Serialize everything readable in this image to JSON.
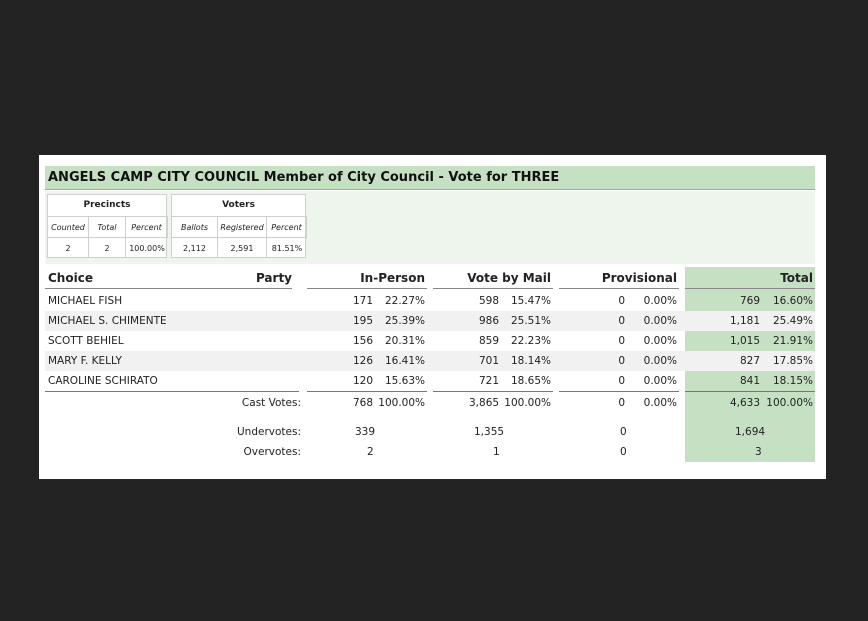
{
  "title": "ANGELS CAMP CITY COUNCIL  Member of City Council - Vote for THREE",
  "precincts": {
    "header": "Precincts",
    "columns": [
      "Counted",
      "Total",
      "Percent"
    ],
    "values": [
      "2",
      "2",
      "100.00%"
    ]
  },
  "voters": {
    "header": "Voters",
    "columns": [
      "Ballots",
      "Registered",
      "Percent"
    ],
    "values": [
      "2,112",
      "2,591",
      "81.51%"
    ]
  },
  "columns": {
    "choice": "Choice",
    "party": "Party",
    "in_person": "In-Person",
    "vote_by_mail": "Vote by Mail",
    "provisional": "Provisional",
    "total": "Total"
  },
  "candidates": [
    {
      "name": "MICHAEL FISH",
      "ip": "171",
      "ip_pct": "22.27%",
      "vbm": "598",
      "vbm_pct": "15.47%",
      "prov": "0",
      "prov_pct": "0.00%",
      "total": "769",
      "total_pct": "16.60%"
    },
    {
      "name": "MICHAEL S. CHIMENTE",
      "ip": "195",
      "ip_pct": "25.39%",
      "vbm": "986",
      "vbm_pct": "25.51%",
      "prov": "0",
      "prov_pct": "0.00%",
      "total": "1,181",
      "total_pct": "25.49%"
    },
    {
      "name": "SCOTT BEHIEL",
      "ip": "156",
      "ip_pct": "20.31%",
      "vbm": "859",
      "vbm_pct": "22.23%",
      "prov": "0",
      "prov_pct": "0.00%",
      "total": "1,015",
      "total_pct": "21.91%"
    },
    {
      "name": "MARY F. KELLY",
      "ip": "126",
      "ip_pct": "16.41%",
      "vbm": "701",
      "vbm_pct": "18.14%",
      "prov": "0",
      "prov_pct": "0.00%",
      "total": "827",
      "total_pct": "17.85%"
    },
    {
      "name": "CAROLINE SCHIRATO",
      "ip": "120",
      "ip_pct": "15.63%",
      "vbm": "721",
      "vbm_pct": "18.65%",
      "prov": "0",
      "prov_pct": "0.00%",
      "total": "841",
      "total_pct": "18.15%"
    }
  ],
  "cast_votes": {
    "label": "Cast Votes:",
    "ip": "768",
    "ip_pct": "100.00%",
    "vbm": "3,865",
    "vbm_pct": "100.00%",
    "prov": "0",
    "prov_pct": "0.00%",
    "total": "4,633",
    "total_pct": "100.00%"
  },
  "undervotes": {
    "label": "Undervotes:",
    "ip": "339",
    "vbm": "1,355",
    "prov": "0",
    "total": "1,694"
  },
  "overvotes": {
    "label": "Overvotes:",
    "ip": "2",
    "vbm": "1",
    "prov": "0",
    "total": "3"
  },
  "colors": {
    "header_green": "#c6e0c4",
    "stats_bg": "#eef5ed",
    "row_shade": "#f1f1f1",
    "backdrop": "#232323"
  }
}
